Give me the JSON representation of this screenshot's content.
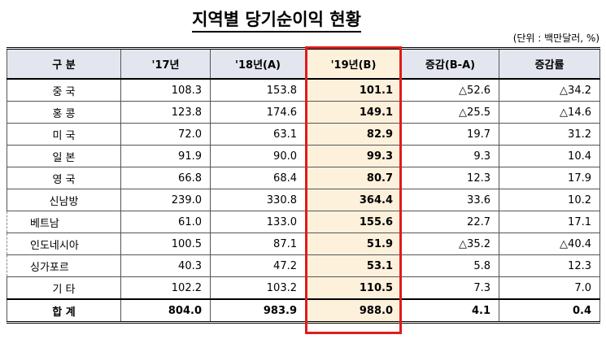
{
  "header": {
    "title": "지역별 당기순이익 현황",
    "unit": "(단위 : 백만달러, %)"
  },
  "table": {
    "columns": [
      "구 분",
      "'17년",
      "'18년(A)",
      "'19년(B)",
      "증감(B-A)",
      "증감률"
    ],
    "rows": [
      [
        "중 국",
        "108.3",
        "153.8",
        "101.1",
        "△52.6",
        "△34.2"
      ],
      [
        "홍 콩",
        "123.8",
        "174.6",
        "149.1",
        "△25.5",
        "△14.6"
      ],
      [
        "미 국",
        "72.0",
        "63.1",
        "82.9",
        "19.7",
        "31.2"
      ],
      [
        "일 본",
        "91.9",
        "90.0",
        "99.3",
        "9.3",
        "10.4"
      ],
      [
        "영 국",
        "66.8",
        "68.4",
        "80.7",
        "12.3",
        "17.9"
      ],
      [
        "신남방",
        "239.0",
        "330.8",
        "364.4",
        "33.6",
        "10.2"
      ],
      [
        "베트남",
        "61.0",
        "133.0",
        "155.6",
        "22.7",
        "17.1"
      ],
      [
        "인도네시아",
        "100.5",
        "87.1",
        "51.9",
        "△35.2",
        "△40.4"
      ],
      [
        "싱가포르",
        "40.3",
        "47.2",
        "53.1",
        "5.8",
        "12.3"
      ],
      [
        "기 타",
        "102.2",
        "103.2",
        "110.5",
        "7.3",
        "7.0"
      ],
      [
        "합 계",
        "804.0",
        "983.9",
        "988.0",
        "4.1",
        "0.4"
      ]
    ]
  }
}
